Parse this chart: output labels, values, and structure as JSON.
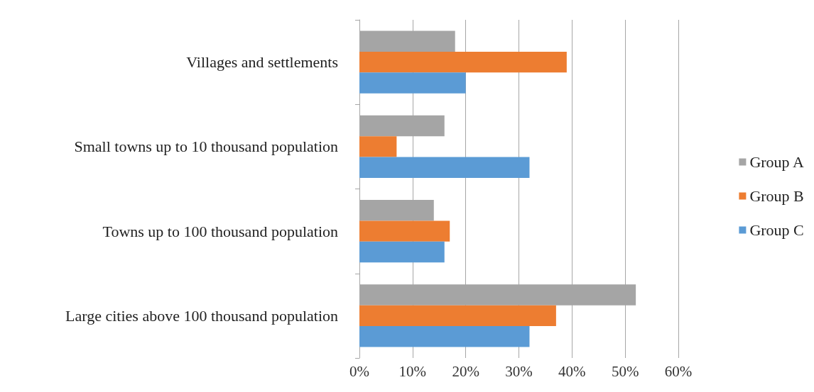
{
  "chart_data": {
    "type": "bar",
    "orientation": "horizontal",
    "categories": [
      "Villages and settlements",
      "Small towns up to 10 thousand population",
      "Towns up to 100 thousand population",
      "Large cities above 100 thousand population"
    ],
    "series": [
      {
        "name": "Group A",
        "color": "#a5a5a5",
        "values": [
          18,
          16,
          14,
          52
        ]
      },
      {
        "name": "Group B",
        "color": "#ed7d31",
        "values": [
          39,
          7,
          17,
          37
        ]
      },
      {
        "name": "Group C",
        "color": "#5b9bd5",
        "values": [
          20,
          32,
          16,
          32
        ]
      }
    ],
    "xlim": [
      0,
      60
    ],
    "xticks": [
      {
        "value": 0,
        "label": "0%"
      },
      {
        "value": 10,
        "label": "10%"
      },
      {
        "value": 20,
        "label": "20%"
      },
      {
        "value": 30,
        "label": "30%"
      },
      {
        "value": 40,
        "label": "40%"
      },
      {
        "value": 50,
        "label": "50%"
      },
      {
        "value": 60,
        "label": "60%"
      }
    ],
    "grid": "x",
    "legend": "right"
  }
}
